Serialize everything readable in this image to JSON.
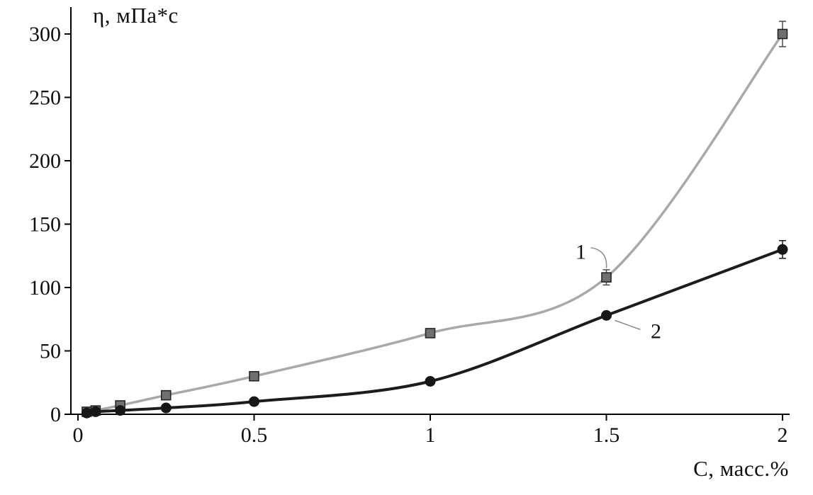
{
  "chart_data": {
    "type": "line",
    "title": "",
    "xlabel": "C, масс.%",
    "ylabel": "η, мПа*с",
    "xlim": [
      0,
      2.02
    ],
    "ylim": [
      0,
      317
    ],
    "x_ticks": [
      "0",
      "0.5",
      "1",
      "1.5",
      "2"
    ],
    "x_tick_values": [
      0,
      0.5,
      1,
      1.5,
      2
    ],
    "y_ticks": [
      "0",
      "50",
      "100",
      "150",
      "200",
      "250",
      "300"
    ],
    "y_tick_values": [
      0,
      50,
      100,
      150,
      200,
      250,
      300
    ],
    "grid": false,
    "legend_position": "none",
    "axis_color": "#000000",
    "series": [
      {
        "name": "1",
        "marker": "square",
        "line_color": "#a9a9a9",
        "line_width": 3.5,
        "marker_fill": "#6f6f6f",
        "marker_stroke": "#262626",
        "error_color": "#4a4a4a",
        "x": [
          0.025,
          0.05,
          0.12,
          0.25,
          0.5,
          1,
          1.5,
          2
        ],
        "y": [
          2,
          3,
          7,
          15,
          30,
          64,
          108,
          300
        ],
        "yerr": [
          0,
          0,
          0,
          0,
          0,
          0,
          6,
          10
        ]
      },
      {
        "name": "2",
        "marker": "circle",
        "line_color": "#1c1c1c",
        "line_width": 4,
        "marker_fill": "#171717",
        "marker_stroke": "#171717",
        "error_color": "#171717",
        "x": [
          0.025,
          0.05,
          0.12,
          0.25,
          0.5,
          1,
          1.5,
          2
        ],
        "y": [
          1,
          2,
          3,
          5,
          10,
          26,
          78,
          130
        ],
        "yerr": [
          0,
          0,
          0,
          0,
          0,
          0,
          0,
          7
        ]
      }
    ],
    "annotations": [
      {
        "label": "1",
        "series_index": 0,
        "anchor_x": 1.5,
        "text_dx": -36,
        "text_dy": -26,
        "connector": [
          [
            -22,
            -42
          ],
          [
            2,
            -38
          ],
          [
            0,
            -13
          ]
        ]
      },
      {
        "label": "2",
        "series_index": 1,
        "anchor_x": 1.5,
        "text_dx": 70,
        "text_dy": 32,
        "connector": [
          [
            12,
            7
          ],
          [
            48,
            20
          ]
        ]
      }
    ]
  }
}
